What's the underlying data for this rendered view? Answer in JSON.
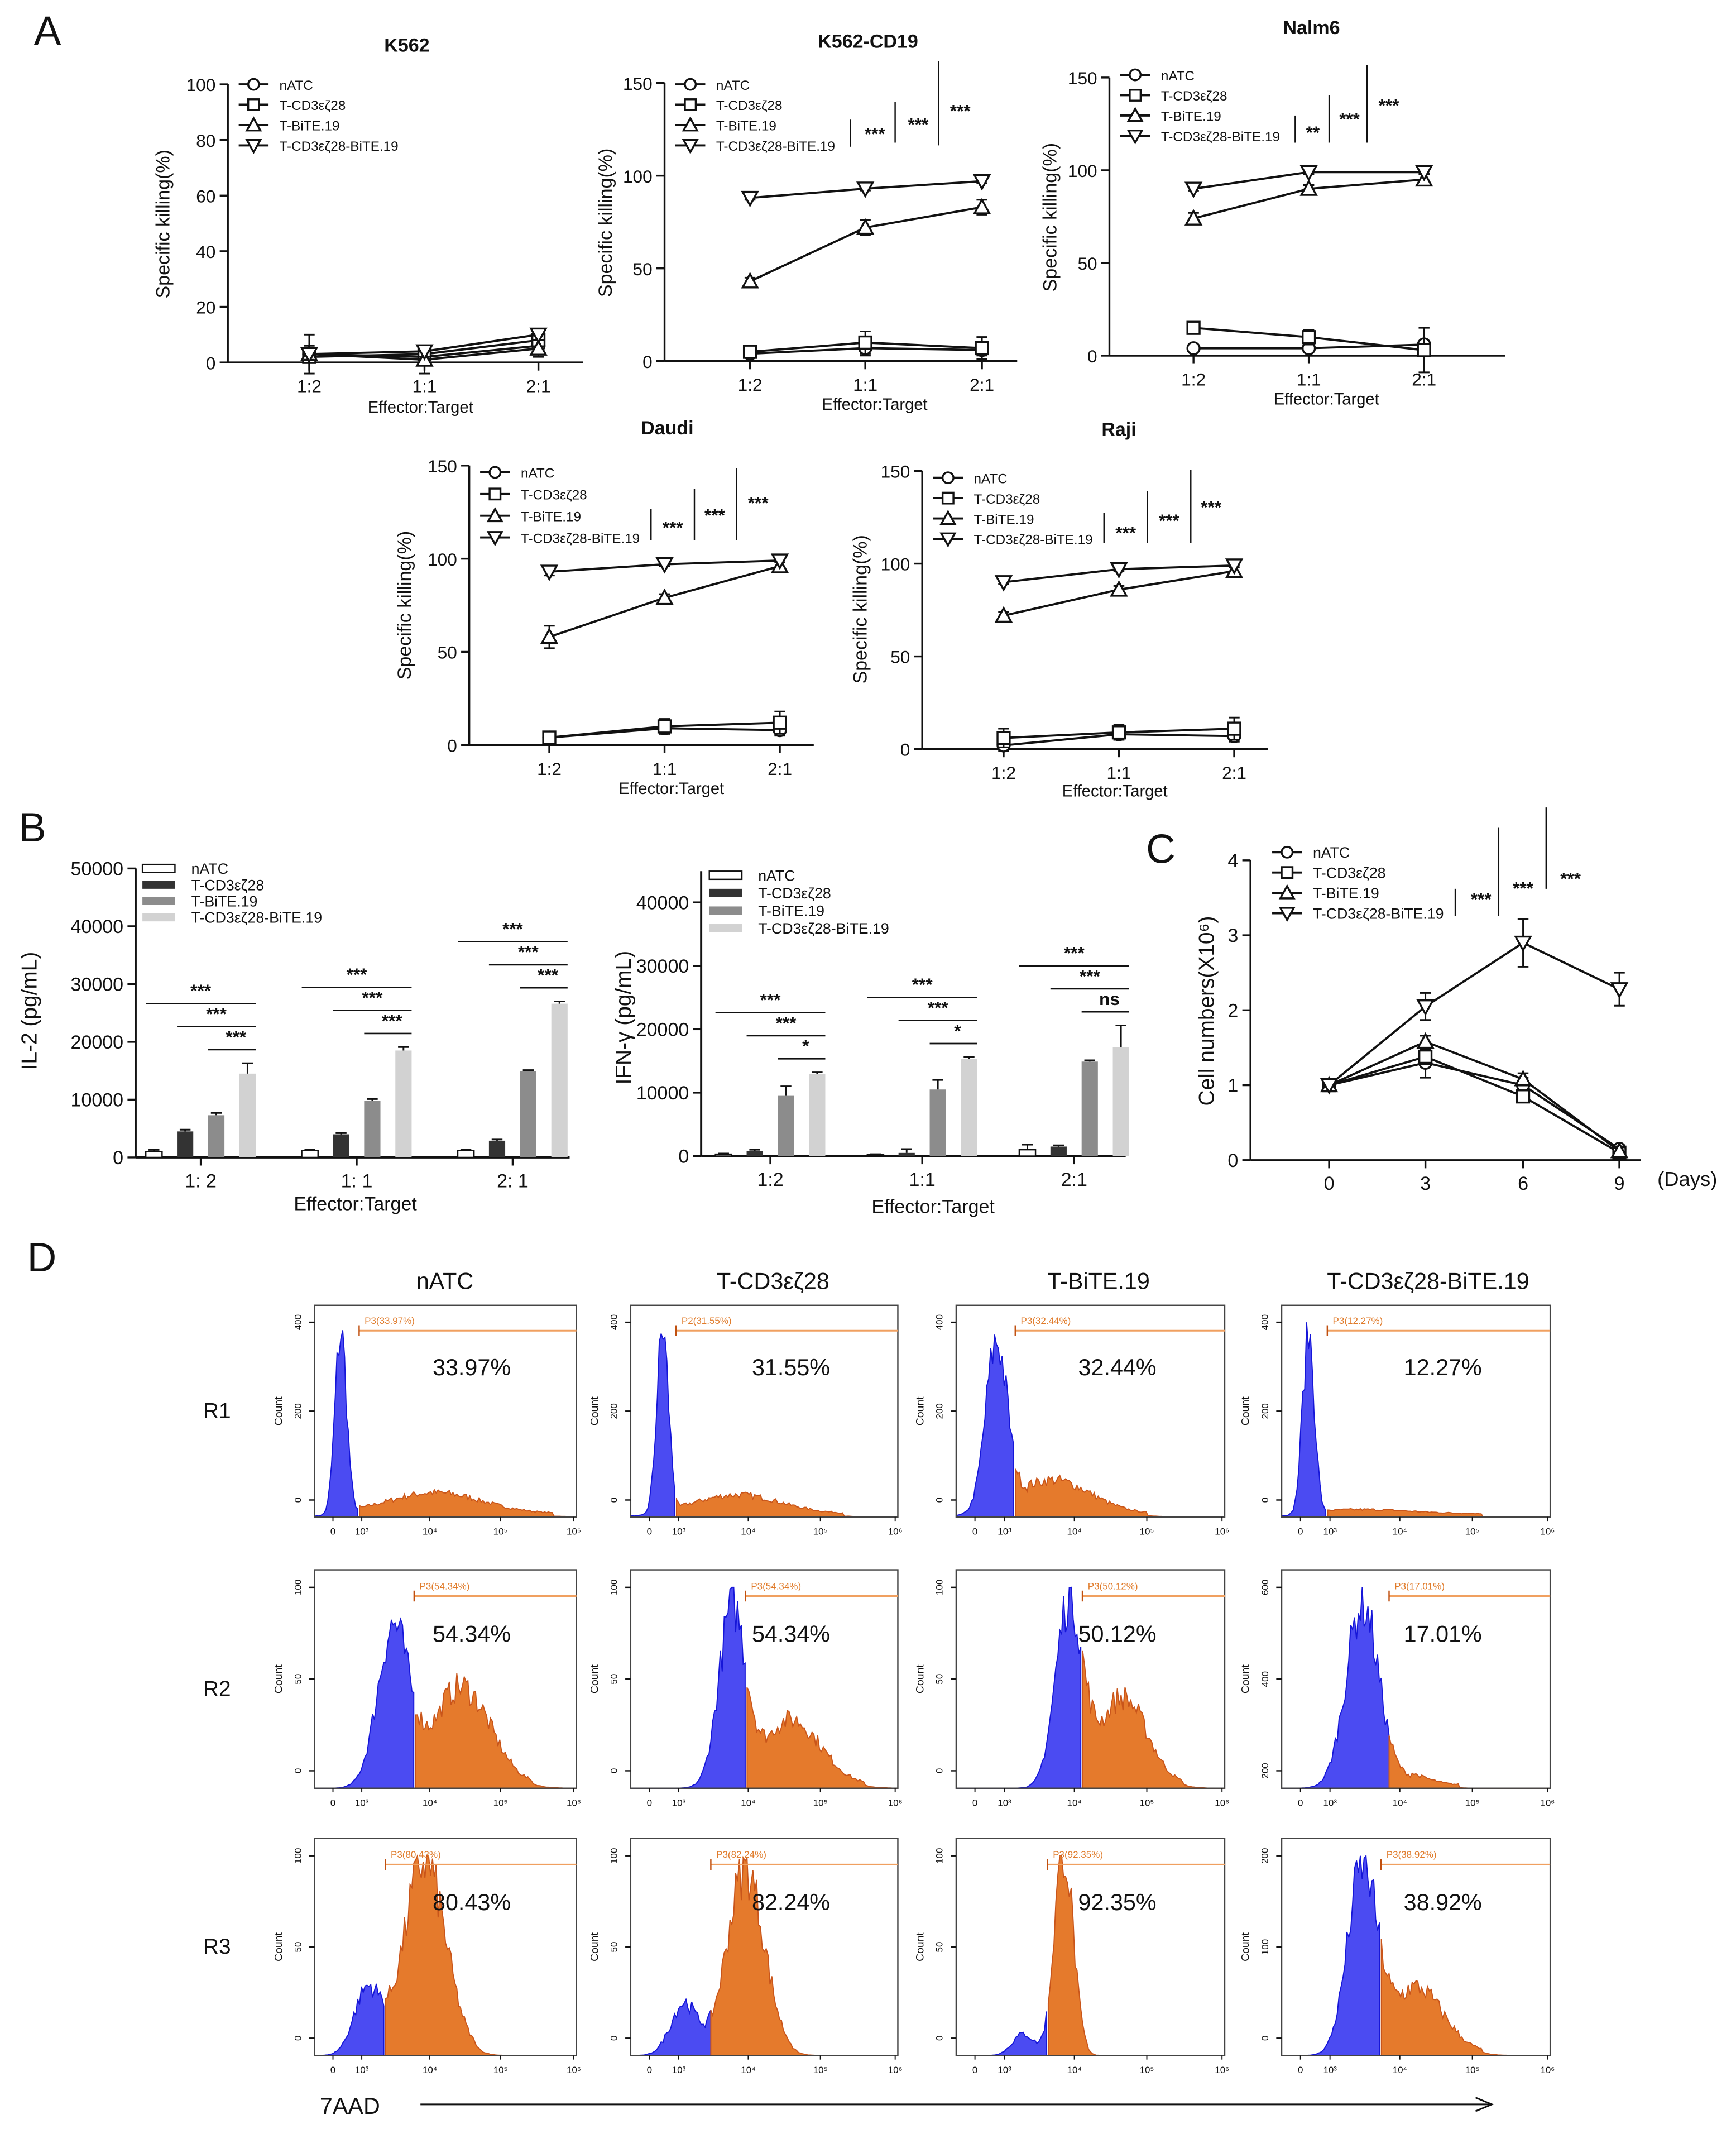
{
  "panel_labels": {
    "A": "A",
    "B": "B",
    "C": "C",
    "D": "D"
  },
  "legend_names": [
    "nATC",
    "T-CD3εζ28",
    "T-BiTE.19",
    "T-CD3εζ28-BiTE.19"
  ],
  "colors": {
    "axis": "#111111",
    "bar_nATC": "#ffffff",
    "bar_CD3": "#333333",
    "bar_BiTE": "#8c8c8c",
    "bar_combo": "#d2d2d2",
    "flow_blue": "#4b4bf2",
    "flow_orange": "#e57a2c",
    "gate": "#f0a060"
  },
  "chart_data": [
    {
      "type": "line",
      "title": "K562",
      "xlabel": "Effector:Target",
      "ylabel": "Specific killing(%)",
      "categories": [
        "1:2",
        "1:1",
        "2:1"
      ],
      "ylim": [
        0,
        100
      ],
      "yticks": [
        "0",
        "20",
        "40",
        "60",
        "80",
        "100"
      ],
      "series": [
        {
          "name": "nATC",
          "marker": "circle",
          "values": [
            3,
            2,
            6
          ],
          "err": [
            3,
            3,
            3
          ]
        },
        {
          "name": "T-CD3εζ28",
          "marker": "square",
          "values": [
            2,
            3,
            8
          ],
          "err": [
            2,
            2,
            3
          ]
        },
        {
          "name": "T-BiTE.19",
          "marker": "triangle-up",
          "values": [
            3,
            1,
            5
          ],
          "err": [
            7,
            5,
            3
          ]
        },
        {
          "name": "T-CD3εζ28-BiTE.19",
          "marker": "triangle-down",
          "values": [
            3,
            4,
            10
          ],
          "err": [
            2,
            2,
            2
          ]
        }
      ],
      "significance": []
    },
    {
      "type": "line",
      "title": "K562-CD19",
      "xlabel": "Effector:Target",
      "ylabel": "Specific killing(%)",
      "categories": [
        "1:2",
        "1:1",
        "2:1"
      ],
      "ylim": [
        0,
        150
      ],
      "yticks": [
        "0",
        "50",
        "100",
        "150"
      ],
      "series": [
        {
          "name": "nATC",
          "marker": "circle",
          "values": [
            4,
            7,
            6
          ],
          "err": [
            2,
            4,
            3
          ]
        },
        {
          "name": "T-CD3εζ28",
          "marker": "square",
          "values": [
            5,
            10,
            7
          ],
          "err": [
            3,
            6,
            6
          ]
        },
        {
          "name": "T-BiTE.19",
          "marker": "triangle-up",
          "values": [
            43,
            72,
            83
          ],
          "err": [
            2,
            4,
            4
          ]
        },
        {
          "name": "T-CD3εζ28-BiTE.19",
          "marker": "triangle-down",
          "values": [
            88,
            93,
            97
          ],
          "err": [
            1,
            1,
            1
          ]
        }
      ],
      "significance": [
        "***",
        "***",
        "***"
      ]
    },
    {
      "type": "line",
      "title": "Nalm6",
      "xlabel": "Effector:Target",
      "ylabel": "Specific killing(%)",
      "categories": [
        "1:2",
        "1:1",
        "2:1"
      ],
      "ylim": [
        0,
        150
      ],
      "yticks": [
        "0",
        "50",
        "100",
        "150"
      ],
      "series": [
        {
          "name": "nATC",
          "marker": "circle",
          "values": [
            4,
            4,
            6
          ],
          "err": [
            1,
            1,
            2
          ]
        },
        {
          "name": "T-CD3εζ28",
          "marker": "square",
          "values": [
            15,
            10,
            3
          ],
          "err": [
            3,
            4,
            12
          ]
        },
        {
          "name": "T-BiTE.19",
          "marker": "triangle-up",
          "values": [
            74,
            90,
            95
          ],
          "err": [
            3,
            2,
            3
          ]
        },
        {
          "name": "T-CD3εζ28-BiTE.19",
          "marker": "triangle-down",
          "values": [
            90,
            99,
            99
          ],
          "err": [
            1,
            1,
            1
          ]
        }
      ],
      "significance": [
        "**",
        "***",
        "***"
      ]
    },
    {
      "type": "line",
      "title": "Daudi",
      "xlabel": "Effector:Target",
      "ylabel": "Specific killing(%)",
      "categories": [
        "1:2",
        "1:1",
        "2:1"
      ],
      "ylim": [
        0,
        150
      ],
      "yticks": [
        "0",
        "50",
        "100",
        "150"
      ],
      "series": [
        {
          "name": "nATC",
          "marker": "circle",
          "values": [
            4,
            9,
            8
          ],
          "err": [
            2,
            3,
            3
          ]
        },
        {
          "name": "T-CD3εζ28",
          "marker": "square",
          "values": [
            4,
            10,
            12
          ],
          "err": [
            2,
            4,
            6
          ]
        },
        {
          "name": "T-BiTE.19",
          "marker": "triangle-up",
          "values": [
            58,
            79,
            96
          ],
          "err": [
            6,
            2,
            3
          ]
        },
        {
          "name": "T-CD3εζ28-BiTE.19",
          "marker": "triangle-down",
          "values": [
            93,
            97,
            99
          ],
          "err": [
            2,
            1,
            1
          ]
        }
      ],
      "significance": [
        "***",
        "***",
        "***"
      ]
    },
    {
      "type": "line",
      "title": "Raji",
      "xlabel": "Effector:Target",
      "ylabel": "Specific killing(%)",
      "categories": [
        "1:2",
        "1:1",
        "2:1"
      ],
      "ylim": [
        0,
        150
      ],
      "yticks": [
        "0",
        "50",
        "100",
        "150"
      ],
      "series": [
        {
          "name": "nATC",
          "marker": "circle",
          "values": [
            2,
            8,
            7
          ],
          "err": [
            3,
            3,
            3
          ]
        },
        {
          "name": "T-CD3εζ28",
          "marker": "square",
          "values": [
            6,
            9,
            11
          ],
          "err": [
            5,
            4,
            6
          ]
        },
        {
          "name": "T-BiTE.19",
          "marker": "triangle-up",
          "values": [
            72,
            86,
            96
          ],
          "err": [
            2,
            2,
            3
          ]
        },
        {
          "name": "T-CD3εζ28-BiTE.19",
          "marker": "triangle-down",
          "values": [
            90,
            97,
            99
          ],
          "err": [
            1,
            1,
            1
          ]
        }
      ],
      "significance": [
        "***",
        "***",
        "***"
      ]
    },
    {
      "type": "bar",
      "title": "",
      "xlabel": "Effector:Target",
      "ylabel": "IL-2 (pg/mL)",
      "categories": [
        "1: 2",
        "1: 1",
        "2: 1"
      ],
      "ylim": [
        0,
        50000
      ],
      "yticks": [
        "0",
        "10000",
        "20000",
        "30000",
        "40000",
        "50000"
      ],
      "series": [
        {
          "name": "nATC",
          "values": [
            1000,
            1200,
            1200
          ],
          "err": [
            300,
            200,
            200
          ]
        },
        {
          "name": "T-CD3εζ28",
          "values": [
            4500,
            4000,
            2900
          ],
          "err": [
            300,
            200,
            200
          ]
        },
        {
          "name": "T-BiTE.19",
          "values": [
            7300,
            9800,
            14900
          ],
          "err": [
            400,
            300,
            200
          ]
        },
        {
          "name": "T-CD3εζ28-BiTE.19",
          "values": [
            14500,
            18500,
            26600
          ],
          "err": [
            1800,
            600,
            400
          ]
        }
      ],
      "significance": [
        [
          "***",
          "***",
          "***"
        ],
        [
          "***",
          "***",
          "***"
        ],
        [
          "***",
          "***",
          "***"
        ]
      ]
    },
    {
      "type": "bar",
      "title": "",
      "xlabel": "Effector:Target",
      "ylabel": "IFN-γ (pg/mL)",
      "categories": [
        "1:2",
        "1:1",
        "2:1"
      ],
      "ylim": [
        0,
        40000
      ],
      "yticks": [
        "0",
        "10000",
        "20000",
        "30000",
        "40000"
      ],
      "series": [
        {
          "name": "nATC",
          "values": [
            300,
            200,
            1000
          ],
          "err": [
            100,
            100,
            800
          ]
        },
        {
          "name": "T-CD3εζ28",
          "values": [
            800,
            500,
            1500
          ],
          "err": [
            200,
            600,
            200
          ]
        },
        {
          "name": "T-BiTE.19",
          "values": [
            9500,
            10500,
            14900
          ],
          "err": [
            1500,
            1500,
            200
          ]
        },
        {
          "name": "T-CD3εζ28-BiTE.19",
          "values": [
            12900,
            15300,
            17200
          ],
          "err": [
            300,
            300,
            3400
          ]
        }
      ],
      "significance": [
        [
          "***",
          "***",
          "*"
        ],
        [
          "***",
          "***",
          "*"
        ],
        [
          "***",
          "***",
          "ns"
        ]
      ]
    },
    {
      "type": "line",
      "title": "",
      "xlabel": "(Days)",
      "ylabel": "Cell numbers(X10⁶)",
      "categories": [
        "0",
        "3",
        "6",
        "9"
      ],
      "ylim": [
        0,
        4
      ],
      "yticks": [
        "0",
        "1",
        "2",
        "3",
        "4"
      ],
      "series": [
        {
          "name": "nATC",
          "marker": "circle",
          "values": [
            1.0,
            1.3,
            1.0,
            0.15
          ],
          "err": [
            0.02,
            0.2,
            0.1,
            0.05
          ]
        },
        {
          "name": "T-CD3εζ28",
          "marker": "square",
          "values": [
            1.0,
            1.38,
            0.85,
            0.1
          ],
          "err": [
            0.02,
            0.1,
            0.08,
            0.05
          ]
        },
        {
          "name": "T-BiTE.19",
          "marker": "triangle-up",
          "values": [
            1.0,
            1.58,
            1.08,
            0.12
          ],
          "err": [
            0.02,
            0.08,
            0.08,
            0.05
          ]
        },
        {
          "name": "T-CD3εζ28-BiTE.19",
          "marker": "triangle-down",
          "values": [
            1.0,
            2.05,
            2.9,
            2.28
          ],
          "err": [
            0.02,
            0.18,
            0.32,
            0.22
          ]
        }
      ],
      "significance": [
        "***",
        "***",
        "***"
      ]
    }
  ],
  "panel_D": {
    "columns": [
      "nATC",
      "T-CD3εζ28",
      "T-BiTE.19",
      "T-CD3εζ28-BiTE.19"
    ],
    "y_axis_label": "Count",
    "x_axis_label": "7AAD",
    "x_ticks": [
      "0",
      "10³",
      "10⁴",
      "10⁵",
      "10⁶"
    ],
    "rows": [
      {
        "label": "R1",
        "cells": [
          {
            "percent": "33.97%",
            "gate": "P3(33.97%)",
            "yticks": [
              "400",
              "200",
              "0"
            ]
          },
          {
            "percent": "31.55%",
            "gate": "P2(31.55%)",
            "yticks": [
              "400",
              "200",
              "0"
            ]
          },
          {
            "percent": "32.44%",
            "gate": "P3(32.44%)",
            "yticks": [
              "400",
              "200",
              "0"
            ]
          },
          {
            "percent": "12.27%",
            "gate": "P3(12.27%)",
            "yticks": [
              "400",
              "200",
              "0"
            ]
          }
        ]
      },
      {
        "label": "R2",
        "cells": [
          {
            "percent": "54.34%",
            "gate": "P3(54.34%)",
            "yticks": [
              "100",
              "50",
              "0"
            ]
          },
          {
            "percent": "54.34%",
            "gate": "P3(54.34%)",
            "yticks": [
              "100",
              "50",
              "0"
            ]
          },
          {
            "percent": "50.12%",
            "gate": "P3(50.12%)",
            "yticks": [
              "100",
              "50",
              "0"
            ]
          },
          {
            "percent": "17.01%",
            "gate": "P3(17.01%)",
            "yticks": [
              "600",
              "400",
              "200"
            ]
          }
        ]
      },
      {
        "label": "R3",
        "cells": [
          {
            "percent": "80.43%",
            "gate": "P3(80.43%)",
            "yticks": [
              "100",
              "50",
              "0"
            ]
          },
          {
            "percent": "82.24%",
            "gate": "P3(82.24%)",
            "yticks": [
              "100",
              "50",
              "0"
            ]
          },
          {
            "percent": "92.35%",
            "gate": "P3(92.35%)",
            "yticks": [
              "100",
              "50",
              "0"
            ]
          },
          {
            "percent": "38.92%",
            "gate": "P3(38.92%)",
            "yticks": [
              "200",
              "100",
              "0"
            ]
          }
        ]
      }
    ]
  }
}
